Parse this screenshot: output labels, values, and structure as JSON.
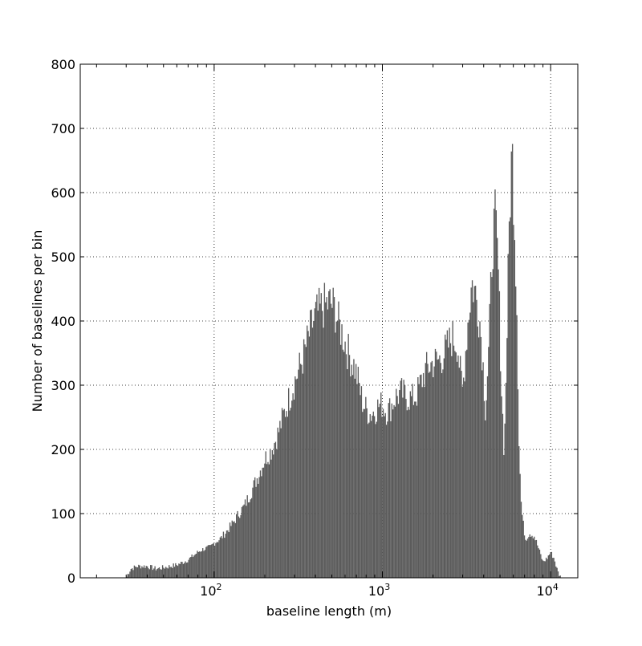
{
  "chart_data": {
    "type": "bar",
    "title": "",
    "xlabel": "baseline length (m)",
    "ylabel": "Number of baselines per bin",
    "x_scale": "log",
    "x_range": [
      16,
      14500
    ],
    "y_range": [
      0,
      800
    ],
    "y_ticks": [
      0,
      100,
      200,
      300,
      400,
      500,
      600,
      700,
      800
    ],
    "x_ticks": [
      {
        "value": 100,
        "base": "10",
        "exponent": "2"
      },
      {
        "value": 1000,
        "base": "10",
        "exponent": "3"
      },
      {
        "value": 10000,
        "base": "10",
        "exponent": "4"
      }
    ],
    "grid": true,
    "bar_color": "#5b5b5b",
    "profile": [
      [
        30,
        0
      ],
      [
        31,
        8
      ],
      [
        32,
        14
      ],
      [
        35,
        18
      ],
      [
        40,
        18
      ],
      [
        45,
        14
      ],
      [
        50,
        16
      ],
      [
        55,
        18
      ],
      [
        60,
        20
      ],
      [
        65,
        24
      ],
      [
        70,
        28
      ],
      [
        75,
        34
      ],
      [
        80,
        40
      ],
      [
        85,
        44
      ],
      [
        90,
        46
      ],
      [
        95,
        48
      ],
      [
        100,
        54
      ],
      [
        110,
        62
      ],
      [
        120,
        74
      ],
      [
        130,
        86
      ],
      [
        140,
        100
      ],
      [
        150,
        110
      ],
      [
        160,
        125
      ],
      [
        170,
        140
      ],
      [
        180,
        155
      ],
      [
        190,
        170
      ],
      [
        200,
        185
      ],
      [
        220,
        200
      ],
      [
        240,
        225
      ],
      [
        260,
        255
      ],
      [
        280,
        280
      ],
      [
        300,
        305
      ],
      [
        320,
        325
      ],
      [
        340,
        345
      ],
      [
        360,
        370
      ],
      [
        380,
        392
      ],
      [
        400,
        408
      ],
      [
        430,
        418
      ],
      [
        460,
        425
      ],
      [
        490,
        428
      ],
      [
        520,
        420
      ],
      [
        550,
        395
      ],
      [
        580,
        380
      ],
      [
        610,
        360
      ],
      [
        640,
        345
      ],
      [
        680,
        330
      ],
      [
        720,
        305
      ],
      [
        760,
        275
      ],
      [
        800,
        262
      ],
      [
        850,
        255
      ],
      [
        900,
        260
      ],
      [
        950,
        268
      ],
      [
        1000,
        270
      ],
      [
        1050,
        260
      ],
      [
        1100,
        262
      ],
      [
        1150,
        272
      ],
      [
        1200,
        282
      ],
      [
        1300,
        288
      ],
      [
        1400,
        282
      ],
      [
        1500,
        278
      ],
      [
        1600,
        285
      ],
      [
        1700,
        305
      ],
      [
        1800,
        322
      ],
      [
        1900,
        330
      ],
      [
        2000,
        335
      ],
      [
        2200,
        340
      ],
      [
        2400,
        355
      ],
      [
        2600,
        375
      ],
      [
        2800,
        365
      ],
      [
        2900,
        320
      ],
      [
        3000,
        290
      ],
      [
        3200,
        390
      ],
      [
        3400,
        460
      ],
      [
        3600,
        440
      ],
      [
        3800,
        400
      ],
      [
        3950,
        340
      ],
      [
        4100,
        260
      ],
      [
        4300,
        360
      ],
      [
        4500,
        520
      ],
      [
        4700,
        560
      ],
      [
        4900,
        470
      ],
      [
        5100,
        300
      ],
      [
        5300,
        190
      ],
      [
        5500,
        380
      ],
      [
        5700,
        570
      ],
      [
        5900,
        670
      ],
      [
        6100,
        560
      ],
      [
        6300,
        420
      ],
      [
        6500,
        200
      ],
      [
        6700,
        110
      ],
      [
        6900,
        80
      ],
      [
        7100,
        60
      ],
      [
        7500,
        70
      ],
      [
        8000,
        65
      ],
      [
        8500,
        45
      ],
      [
        9000,
        25
      ],
      [
        9500,
        30
      ],
      [
        10000,
        40
      ],
      [
        10500,
        30
      ],
      [
        11000,
        10
      ],
      [
        11500,
        0
      ]
    ]
  }
}
